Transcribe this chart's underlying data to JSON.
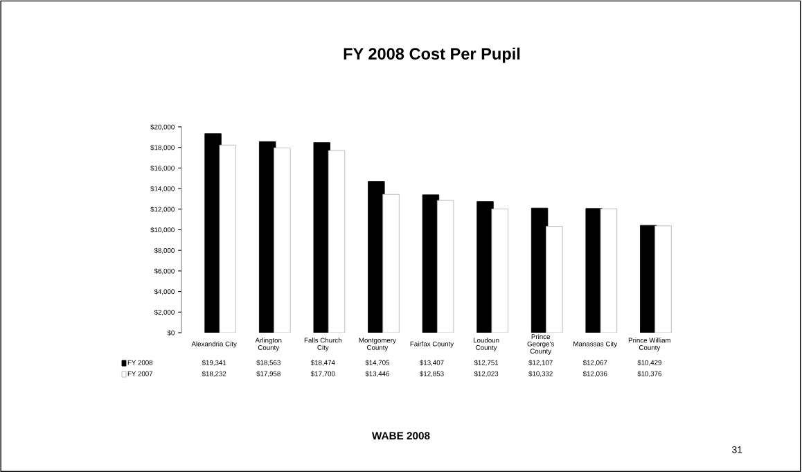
{
  "chart_data": {
    "type": "bar",
    "title": "FY 2008 Cost Per Pupil",
    "categories": [
      "Alexandria City",
      "Arlington\nCounty",
      "Falls Church\nCity",
      "Montgomery\nCounty",
      "Fairfax County",
      "Loudoun\nCounty",
      "Prince\nGeorge's\nCounty",
      "Manassas City",
      "Prince William\nCounty"
    ],
    "series": [
      {
        "name": "FY 2008",
        "color": "#000000",
        "values": [
          19341,
          18563,
          18474,
          14705,
          13407,
          12751,
          12107,
          12067,
          10429
        ],
        "value_labels": [
          "$19,341",
          "$18,563",
          "$18,474",
          "$14,705",
          "$13,407",
          "$12,751",
          "$12,107",
          "$12,067",
          "$10,429"
        ]
      },
      {
        "name": "FY 2007",
        "color": "#ffffff",
        "values": [
          18232,
          17958,
          17700,
          13446,
          12853,
          12023,
          10332,
          12036,
          10376
        ],
        "value_labels": [
          "$18,232",
          "$17,958",
          "$17,700",
          "$13,446",
          "$12,853",
          "$12,023",
          "$10,332",
          "$12,036",
          "$10,376"
        ]
      }
    ],
    "ylim": [
      0,
      20000
    ],
    "yticks": [
      {
        "value": 0,
        "label": "$0"
      },
      {
        "value": 2000,
        "label": "$2,000"
      },
      {
        "value": 4000,
        "label": "$4,000"
      },
      {
        "value": 6000,
        "label": "$6,000"
      },
      {
        "value": 8000,
        "label": "$8,000"
      },
      {
        "value": 10000,
        "label": "$10,000"
      },
      {
        "value": 12000,
        "label": "$12,000"
      },
      {
        "value": 14000,
        "label": "$14,000"
      },
      {
        "value": 16000,
        "label": "$16,000"
      },
      {
        "value": 18000,
        "label": "$18,000"
      },
      {
        "value": 20000,
        "label": "$20,000"
      }
    ],
    "grid": false,
    "legend": "bottom left",
    "data_labels": true,
    "annotations": [
      "WABE 2008",
      "31"
    ]
  }
}
